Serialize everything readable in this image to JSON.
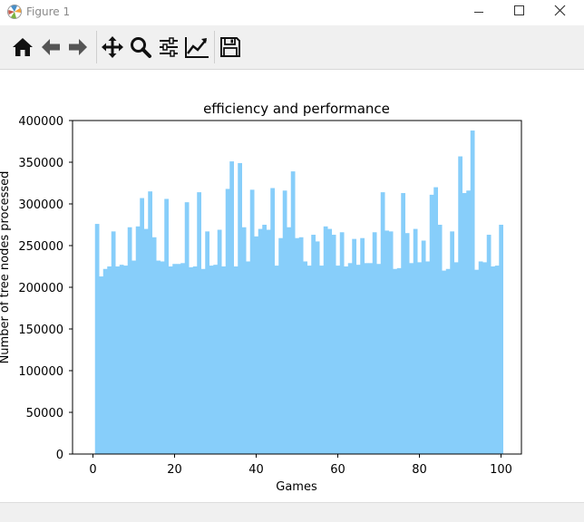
{
  "window": {
    "title": "Figure 1",
    "controls": [
      "minimize",
      "maximize",
      "close"
    ]
  },
  "toolbar": {
    "buttons": [
      {
        "name": "home",
        "icon": "home-icon"
      },
      {
        "name": "back",
        "icon": "arrow-left-icon"
      },
      {
        "name": "forward",
        "icon": "arrow-right-icon"
      },
      {
        "name": "pan",
        "icon": "move-icon"
      },
      {
        "name": "zoom",
        "icon": "magnifier-icon"
      },
      {
        "name": "configure-subplots",
        "icon": "sliders-icon"
      },
      {
        "name": "edit-axis",
        "icon": "line-chart-icon"
      },
      {
        "name": "save",
        "icon": "floppy-disk-icon"
      }
    ]
  },
  "chart_data": {
    "type": "bar",
    "title": "efficiency and performance",
    "xlabel": "Games",
    "ylabel": "Number of tree nodes processed",
    "xlim": [
      -5,
      105
    ],
    "ylim": [
      0,
      400000
    ],
    "xticks": [
      0,
      20,
      40,
      60,
      80,
      100
    ],
    "xtick_labels": [
      "0",
      "20",
      "40",
      "60",
      "80",
      "100"
    ],
    "yticks": [
      0,
      50000,
      100000,
      150000,
      200000,
      250000,
      300000,
      350000,
      400000
    ],
    "ytick_labels": [
      "0",
      "50000",
      "100000",
      "150000",
      "200000",
      "250000",
      "300000",
      "350000",
      "400000"
    ],
    "bar_color": "#87cefa",
    "grid": false,
    "x": [
      1,
      2,
      3,
      4,
      5,
      6,
      7,
      8,
      9,
      10,
      11,
      12,
      13,
      14,
      15,
      16,
      17,
      18,
      19,
      20,
      21,
      22,
      23,
      24,
      25,
      26,
      27,
      28,
      29,
      30,
      31,
      32,
      33,
      34,
      35,
      36,
      37,
      38,
      39,
      40,
      41,
      42,
      43,
      44,
      45,
      46,
      47,
      48,
      49,
      50,
      51,
      52,
      53,
      54,
      55,
      56,
      57,
      58,
      59,
      60,
      61,
      62,
      63,
      64,
      65,
      66,
      67,
      68,
      69,
      70,
      71,
      72,
      73,
      74,
      75,
      76,
      77,
      78,
      79,
      80,
      81,
      82,
      83,
      84,
      85,
      86,
      87,
      88,
      89,
      90,
      91,
      92,
      93,
      94,
      95,
      96,
      97,
      98,
      99,
      100
    ],
    "values": [
      276000,
      213000,
      222000,
      225000,
      267000,
      225000,
      227000,
      226000,
      272000,
      232000,
      273000,
      307000,
      270000,
      315000,
      260000,
      232000,
      231000,
      306000,
      225000,
      228000,
      228000,
      229000,
      302000,
      224000,
      225000,
      314000,
      222000,
      267000,
      226000,
      227000,
      269000,
      225000,
      318000,
      351000,
      225000,
      349000,
      272000,
      231000,
      317000,
      261000,
      270000,
      275000,
      269000,
      319000,
      226000,
      259000,
      316000,
      272000,
      339000,
      259000,
      260000,
      231000,
      226000,
      263000,
      255000,
      226000,
      273000,
      270000,
      263000,
      226000,
      266000,
      225000,
      229000,
      258000,
      227000,
      259000,
      229000,
      229000,
      266000,
      228000,
      314000,
      268000,
      267000,
      222000,
      223000,
      313000,
      265000,
      229000,
      270000,
      230000,
      256000,
      231000,
      311000,
      320000,
      275000,
      220000,
      222000,
      267000,
      230000,
      357000,
      313000,
      316000,
      388000,
      221000,
      231000,
      230000,
      263000,
      225000,
      226000,
      275000
    ]
  }
}
